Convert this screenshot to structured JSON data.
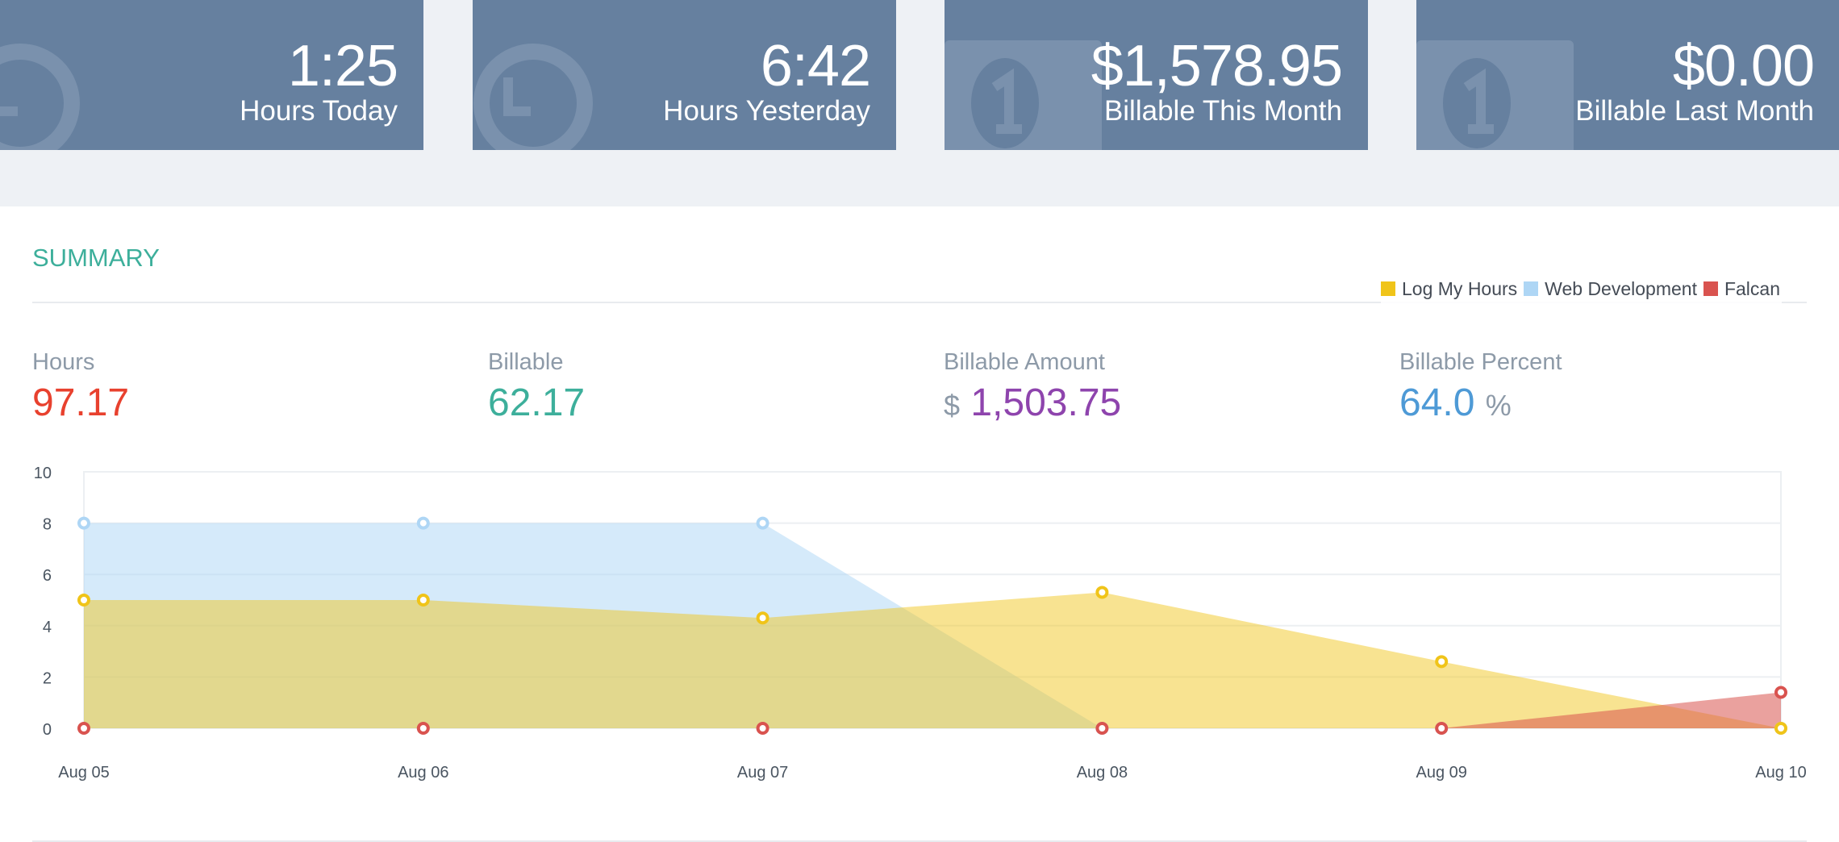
{
  "tiles": [
    {
      "value": "1:25",
      "label": "Hours Today",
      "icon": "clock-icon"
    },
    {
      "value": "6:42",
      "label": "Hours Yesterday",
      "icon": "clock-icon"
    },
    {
      "value": "$1,578.95",
      "label": "Billable This Month",
      "icon": "money-icon"
    },
    {
      "value": "$0.00",
      "label": "Billable Last Month",
      "icon": "money-icon"
    }
  ],
  "summary": {
    "title": "SUMMARY",
    "hours": {
      "label": "Hours",
      "value": "97.17",
      "color": "#e8412e"
    },
    "billable": {
      "label": "Billable",
      "value": "62.17",
      "color": "#3daf9b"
    },
    "billable_amount": {
      "label": "Billable Amount",
      "currency": "$",
      "value": "1,503.75",
      "color": "#8e44ad"
    },
    "billable_percent": {
      "label": "Billable Percent",
      "value": "64.0",
      "unit": "%",
      "color": "#4e9ad6"
    }
  },
  "chart_data": {
    "type": "area",
    "categories": [
      "Aug 05",
      "Aug 06",
      "Aug 07",
      "Aug 08",
      "Aug 09",
      "Aug 10"
    ],
    "ylim": [
      0,
      10
    ],
    "yticks": [
      0,
      2,
      4,
      6,
      8,
      10
    ],
    "grid": true,
    "legend_position": "top-right",
    "series": [
      {
        "name": "Log My Hours",
        "color": "#f0c419",
        "values": [
          5.0,
          5.0,
          4.3,
          5.3,
          2.6,
          0
        ]
      },
      {
        "name": "Web Development",
        "color": "#aed6f5",
        "values": [
          8.0,
          8.0,
          8.0,
          0,
          0,
          0
        ]
      },
      {
        "name": "Falcan",
        "color": "#d9534f",
        "values": [
          0,
          0,
          0,
          0,
          0,
          1.4
        ]
      }
    ]
  }
}
